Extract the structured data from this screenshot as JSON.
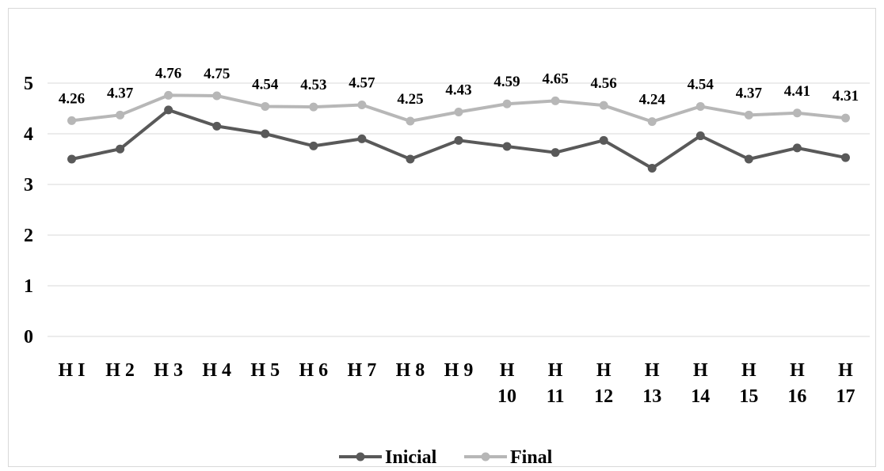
{
  "chart_data": {
    "type": "line",
    "title": "",
    "xlabel": "",
    "ylabel": "",
    "categories": [
      "H I",
      "H 2",
      "H 3",
      "H 4",
      "H 5",
      "H 6",
      "H 7",
      "H 8",
      "H 9",
      "H 10",
      "H 11",
      "H 12",
      "H 13",
      "H 14",
      "H 15",
      "H 16",
      "H 17"
    ],
    "category_lines": [
      [
        "H I"
      ],
      [
        "H 2"
      ],
      [
        "H 3"
      ],
      [
        "H 4"
      ],
      [
        "H 5"
      ],
      [
        "H 6"
      ],
      [
        "H 7"
      ],
      [
        "H 8"
      ],
      [
        "H 9"
      ],
      [
        "H",
        "10"
      ],
      [
        "H",
        "11"
      ],
      [
        "H",
        "12"
      ],
      [
        "H",
        "13"
      ],
      [
        "H",
        "14"
      ],
      [
        "H",
        "15"
      ],
      [
        "H",
        "16"
      ],
      [
        "H",
        "17"
      ]
    ],
    "ylim": [
      0,
      5
    ],
    "yticks": [
      0,
      1,
      2,
      3,
      4,
      5
    ],
    "grid": true,
    "legend_position": "bottom",
    "series": [
      {
        "name": "Inicial",
        "color": "#595959",
        "values": [
          3.5,
          3.7,
          4.47,
          4.15,
          4.0,
          3.76,
          3.9,
          3.5,
          3.87,
          3.75,
          3.63,
          3.87,
          3.32,
          3.96,
          3.5,
          3.72,
          3.53
        ],
        "data_labels": false
      },
      {
        "name": "Final",
        "color": "#b7b7b7",
        "values": [
          4.26,
          4.37,
          4.76,
          4.75,
          4.54,
          4.53,
          4.57,
          4.25,
          4.43,
          4.59,
          4.65,
          4.56,
          4.24,
          4.54,
          4.37,
          4.41,
          4.31
        ],
        "data_labels": true
      }
    ]
  }
}
